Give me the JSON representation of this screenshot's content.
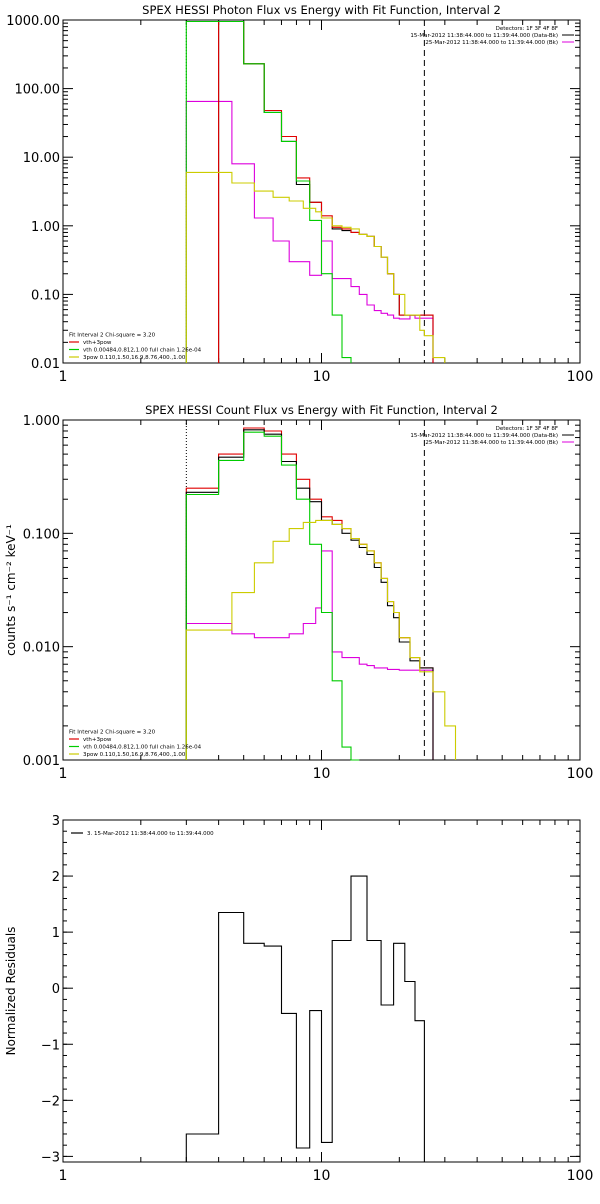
{
  "colors": {
    "total": "#000000",
    "vth_3pow": "#e00000",
    "vth": "#00cc00",
    "pow": "#cccc00",
    "bk": "#dd00dd",
    "axes": "#000000"
  },
  "chart_data": [
    {
      "type": "line",
      "title": "SPEX HESSI Photon Flux vs Energy with Fit Function, Interval 2",
      "xscale": "log",
      "yscale": "log",
      "xlim": [
        1,
        100
      ],
      "ylim": [
        0.01,
        1000
      ],
      "ytick_labels": [
        "1000.00",
        "100.00",
        "10.00",
        "1.00",
        "0.10",
        "0.01"
      ],
      "ytick_values": [
        1000,
        100,
        10,
        1,
        0.1,
        0.01
      ],
      "xtick_labels": [
        "1",
        "10",
        "100"
      ],
      "xtick_values": [
        1,
        10,
        100
      ],
      "vlines": [
        {
          "x": 3.0,
          "style": "dotted"
        },
        {
          "x": 25.0,
          "style": "dashed"
        }
      ],
      "legend_top_right": [
        "Detectors: 1F 3F 4F 8F",
        "15-Mar-2012 11:38:44.000 to 11:39:44.000 (Data-Bk)",
        "25-Mar-2012 11:38:44.000 to 11:39:44.000 (Bk)"
      ],
      "legend_bottom_left": [
        "Fit Interval 2   Chi-square = 3.20",
        "vth+3pow",
        "vth 0.00484,0.812,1.00  full chain 1.26e-04",
        "3pow 0.110,1.50,16.9,8.76,400.,1.00"
      ],
      "edges": [
        3.0,
        3.5,
        4.0,
        4.5,
        5.0,
        5.5,
        6.0,
        6.5,
        7.0,
        7.5,
        8.0,
        8.5,
        9.0,
        9.5,
        10.0,
        11.0,
        12.0,
        13.0,
        14.0,
        15.0,
        16.0,
        17.0,
        18.0,
        19.0,
        20.0,
        21.0,
        22.0,
        23.0,
        24.0,
        25.0,
        27.0,
        30.0
      ],
      "series": [
        {
          "key": "bk",
          "values": [
            65,
            65,
            65,
            8,
            8,
            1.3,
            1.3,
            0.6,
            0.6,
            0.3,
            0.3,
            0.3,
            0.19,
            0.19,
            0.6,
            0.17,
            0.17,
            0.13,
            0.1,
            0.07,
            0.058,
            0.053,
            0.05,
            0.045,
            0.044,
            0.044,
            0.05,
            0.045,
            0.045,
            0.045,
            null
          ]
        },
        {
          "key": "total",
          "values": [
            null,
            null,
            950,
            950,
            230,
            230,
            45,
            45,
            17,
            17,
            4.0,
            4.0,
            2.2,
            2.2,
            1.3,
            0.9,
            0.85,
            0.8,
            0.75,
            0.7,
            0.5,
            0.35,
            0.2,
            0.1,
            0.05,
            0.05,
            0.05,
            0.05,
            0.05,
            0.05,
            null
          ]
        },
        {
          "key": "vth_3pow",
          "values": [
            null,
            null,
            950,
            950,
            230,
            230,
            48,
            48,
            20,
            20,
            5.0,
            5.0,
            2.2,
            2.2,
            1.4,
            0.95,
            0.9,
            0.8,
            0.75,
            0.7,
            0.5,
            0.35,
            0.2,
            0.1,
            0.05,
            0.05,
            0.05,
            0.05,
            0.05,
            0.05,
            null
          ]
        },
        {
          "key": "vth",
          "values": [
            950,
            950,
            950,
            950,
            230,
            230,
            45,
            45,
            17,
            17,
            4.5,
            4.5,
            1.2,
            1.2,
            0.2,
            0.05,
            0.012,
            null,
            null,
            null,
            null,
            null,
            null,
            null,
            null,
            null,
            null,
            null,
            null,
            null,
            null
          ]
        },
        {
          "key": "pow",
          "values": [
            6,
            6,
            6,
            4.2,
            4.2,
            3.2,
            3.2,
            2.6,
            2.6,
            2.3,
            2.3,
            1.8,
            1.8,
            1.6,
            1.3,
            1.0,
            0.95,
            0.9,
            0.75,
            0.7,
            0.5,
            0.35,
            0.2,
            0.1,
            0.1,
            0.05,
            0.05,
            0.05,
            0.03,
            0.025,
            0.012
          ]
        }
      ]
    },
    {
      "type": "line",
      "title": "SPEX HESSI Count Flux vs Energy with Fit Function, Interval 2",
      "xscale": "log",
      "yscale": "log",
      "xlim": [
        1,
        100
      ],
      "ylim": [
        0.001,
        1
      ],
      "ylabel": "counts s⁻¹ cm⁻² keV⁻¹",
      "ytick_labels": [
        "1.000",
        "0.100",
        "0.010",
        "0.001"
      ],
      "ytick_values": [
        1,
        0.1,
        0.01,
        0.001
      ],
      "xtick_labels": [
        "1",
        "10",
        "100"
      ],
      "xtick_values": [
        1,
        10,
        100
      ],
      "vlines": [
        {
          "x": 3.0,
          "style": "dotted"
        },
        {
          "x": 25.0,
          "style": "dashed"
        }
      ],
      "legend_top_right": [
        "Detectors: 1F 3F 4F 8F",
        "15-Mar-2012 11:38:44.000 to 11:39:44.000 (Data-Bk)",
        "25-Mar-2012 11:38:44.000 to 11:39:44.000 (Bk)"
      ],
      "legend_bottom_left": [
        "Fit Interval 2   Chi-square = 3.20",
        "vth+3pow",
        "vth 0.00484,0.812,1.00  full chain 1.26e-04",
        "3pow 0.110,1.50,16.9,8.76,400.,1.00"
      ],
      "edges": [
        3.0,
        3.5,
        4.0,
        4.5,
        5.0,
        5.5,
        6.0,
        6.5,
        7.0,
        7.5,
        8.0,
        8.5,
        9.0,
        9.5,
        10.0,
        11.0,
        12.0,
        13.0,
        14.0,
        15.0,
        16.0,
        17.0,
        18.0,
        19.0,
        20.0,
        21.0,
        22.0,
        23.0,
        24.0,
        25.0,
        27.0,
        30.0,
        33.0
      ],
      "series": [
        {
          "key": "bk",
          "values": [
            0.016,
            0.016,
            0.016,
            0.013,
            0.013,
            0.012,
            0.012,
            0.012,
            0.012,
            0.013,
            0.013,
            0.016,
            0.016,
            0.022,
            0.07,
            0.009,
            0.008,
            0.008,
            0.007,
            0.0068,
            0.0065,
            0.0065,
            0.0063,
            0.0063,
            0.0062,
            0.0062,
            0.0062,
            0.0062,
            0.0062,
            0.0062,
            null,
            null
          ]
        },
        {
          "key": "vth_3pow",
          "values": [
            0.25,
            0.25,
            0.5,
            0.5,
            0.85,
            0.85,
            0.8,
            0.8,
            0.5,
            0.5,
            0.3,
            0.3,
            0.2,
            0.2,
            0.14,
            0.13,
            0.11,
            0.09,
            0.08,
            0.07,
            0.055,
            0.04,
            0.025,
            0.02,
            0.012,
            0.012,
            0.008,
            0.008,
            0.0065,
            0.0065,
            null,
            null
          ]
        },
        {
          "key": "total",
          "values": [
            0.23,
            0.23,
            0.47,
            0.47,
            0.82,
            0.82,
            0.75,
            0.75,
            0.43,
            0.43,
            0.25,
            0.25,
            0.19,
            0.19,
            0.13,
            0.12,
            0.1,
            0.087,
            0.075,
            0.065,
            0.05,
            0.037,
            0.023,
            0.018,
            0.011,
            0.011,
            0.0075,
            0.0075,
            0.0065,
            0.0065,
            null,
            null
          ]
        },
        {
          "key": "vth",
          "values": [
            0.22,
            0.22,
            0.44,
            0.44,
            0.78,
            0.78,
            0.72,
            0.72,
            0.4,
            0.4,
            0.2,
            0.2,
            0.08,
            0.08,
            0.02,
            0.005,
            0.0013,
            0.001,
            null,
            null,
            null,
            null,
            null,
            null,
            null,
            null,
            null,
            null,
            null,
            null,
            null,
            null
          ]
        },
        {
          "key": "pow",
          "values": [
            0.014,
            0.014,
            0.014,
            0.03,
            0.03,
            0.055,
            0.055,
            0.085,
            0.085,
            0.11,
            0.11,
            0.125,
            0.125,
            0.13,
            0.13,
            0.12,
            0.11,
            0.09,
            0.08,
            0.07,
            0.055,
            0.04,
            0.025,
            0.02,
            0.012,
            0.012,
            0.008,
            0.008,
            0.006,
            0.006,
            0.004,
            0.002
          ]
        }
      ]
    },
    {
      "type": "line",
      "xscale": "log",
      "yscale": "linear",
      "xlim": [
        1,
        100
      ],
      "ylim": [
        -3.1,
        3.0
      ],
      "ylabel": "Normalized Residuals",
      "ytick_labels": [
        "3",
        "2",
        "1",
        "0",
        "−1",
        "−2",
        "−3"
      ],
      "ytick_values": [
        3,
        2,
        1,
        0,
        -1,
        -2,
        -3
      ],
      "xtick_labels": [
        "1",
        "10",
        "100"
      ],
      "xtick_values": [
        1,
        10,
        100
      ],
      "legend_top_left": [
        "3. 15-Mar-2012 11:38:44.000 to 11:39:44.000"
      ],
      "edges": [
        3.0,
        3.5,
        4.0,
        4.5,
        5.0,
        5.5,
        6.0,
        6.5,
        7.0,
        7.5,
        8.0,
        8.5,
        9.0,
        9.5,
        10.0,
        11.0,
        12.0,
        13.0,
        14.0,
        15.0,
        16.0,
        17.0,
        18.0,
        19.0,
        20.0,
        21.0,
        22.0,
        23.0,
        24.0,
        25.0
      ],
      "series": [
        {
          "key": "total",
          "values": [
            -2.6,
            -2.6,
            1.35,
            1.35,
            0.8,
            0.8,
            0.75,
            0.75,
            -0.45,
            -0.45,
            -2.85,
            -2.85,
            -0.4,
            -0.4,
            -2.75,
            0.85,
            0.85,
            2.0,
            2.0,
            0.85,
            0.85,
            -0.3,
            -0.3,
            0.8,
            0.8,
            0.12,
            0.12,
            -0.58,
            -0.58
          ]
        }
      ]
    }
  ]
}
